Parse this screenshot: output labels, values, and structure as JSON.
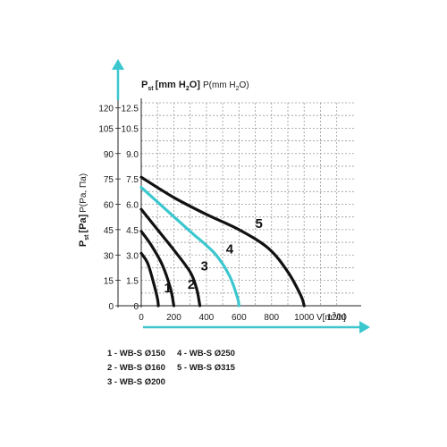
{
  "chart_data": {
    "type": "line",
    "title": "",
    "y_axis_outer_label": {
      "bold": "P",
      "bold_sub": "st",
      "bold_tail": "[Pa]",
      "light": "P(Pa, Па)"
    },
    "y_axis_inner_label": {
      "bold": "P",
      "bold_sub": "st",
      "bold_tail": "[mm H",
      "bold_sub2": "2",
      "bold_tail2": "O]",
      "light": "P(mm H",
      "light_sub": "2",
      "light_tail": "O)"
    },
    "x_axis_label": {
      "main": "V[m",
      "sup": "3",
      "tail": "/h]"
    },
    "x_ticks": [
      "0",
      "200",
      "400",
      "600",
      "800",
      "1000",
      "1200"
    ],
    "y_ticks_pa": [
      "0",
      "15",
      "30",
      "45",
      "60",
      "75",
      "90",
      "105",
      "120"
    ],
    "y_ticks_mm": [
      "0",
      "1.5",
      "3.0",
      "4.5",
      "6.0",
      "7.5",
      "9.0",
      "10.5",
      "12.5"
    ],
    "xlim": [
      0,
      1350
    ],
    "ylim": [
      0,
      120
    ],
    "grid": true,
    "series": [
      {
        "label": "1",
        "color": "#111111",
        "points": [
          [
            0,
            31
          ],
          [
            40,
            25
          ],
          [
            80,
            12
          ],
          [
            100,
            4
          ],
          [
            105,
            0
          ]
        ]
      },
      {
        "label": "2",
        "color": "#111111",
        "points": [
          [
            0,
            44
          ],
          [
            60,
            36
          ],
          [
            130,
            24
          ],
          [
            180,
            10
          ],
          [
            200,
            0
          ]
        ]
      },
      {
        "label": "3",
        "color": "#111111",
        "points": [
          [
            0,
            57
          ],
          [
            100,
            45
          ],
          [
            200,
            33
          ],
          [
            300,
            20
          ],
          [
            340,
            10
          ],
          [
            360,
            0
          ]
        ]
      },
      {
        "label": "4",
        "color": "#3cc7cf",
        "points": [
          [
            0,
            70
          ],
          [
            150,
            57
          ],
          [
            300,
            44
          ],
          [
            450,
            31
          ],
          [
            540,
            18
          ],
          [
            590,
            5
          ],
          [
            600,
            0
          ]
        ]
      },
      {
        "label": "5",
        "color": "#111111",
        "points": [
          [
            0,
            76
          ],
          [
            200,
            64
          ],
          [
            400,
            54
          ],
          [
            600,
            45
          ],
          [
            780,
            34
          ],
          [
            900,
            20
          ],
          [
            980,
            6
          ],
          [
            1000,
            0
          ]
        ]
      }
    ],
    "annotations": [
      {
        "text": "1",
        "x": 140,
        "y": 8
      },
      {
        "text": "2",
        "x": 285,
        "y": 10
      },
      {
        "text": "3",
        "x": 365,
        "y": 21
      },
      {
        "text": "4",
        "x": 520,
        "y": 31
      },
      {
        "text": "5",
        "x": 700,
        "y": 46
      }
    ],
    "legend": {
      "placement": "bottom-left",
      "items": [
        "1 - WB-S Ø150",
        "2 - WB-S Ø160",
        "3 - WB-S Ø200",
        "4 - WB-S Ø250",
        "5 - WB-S Ø315"
      ]
    }
  }
}
